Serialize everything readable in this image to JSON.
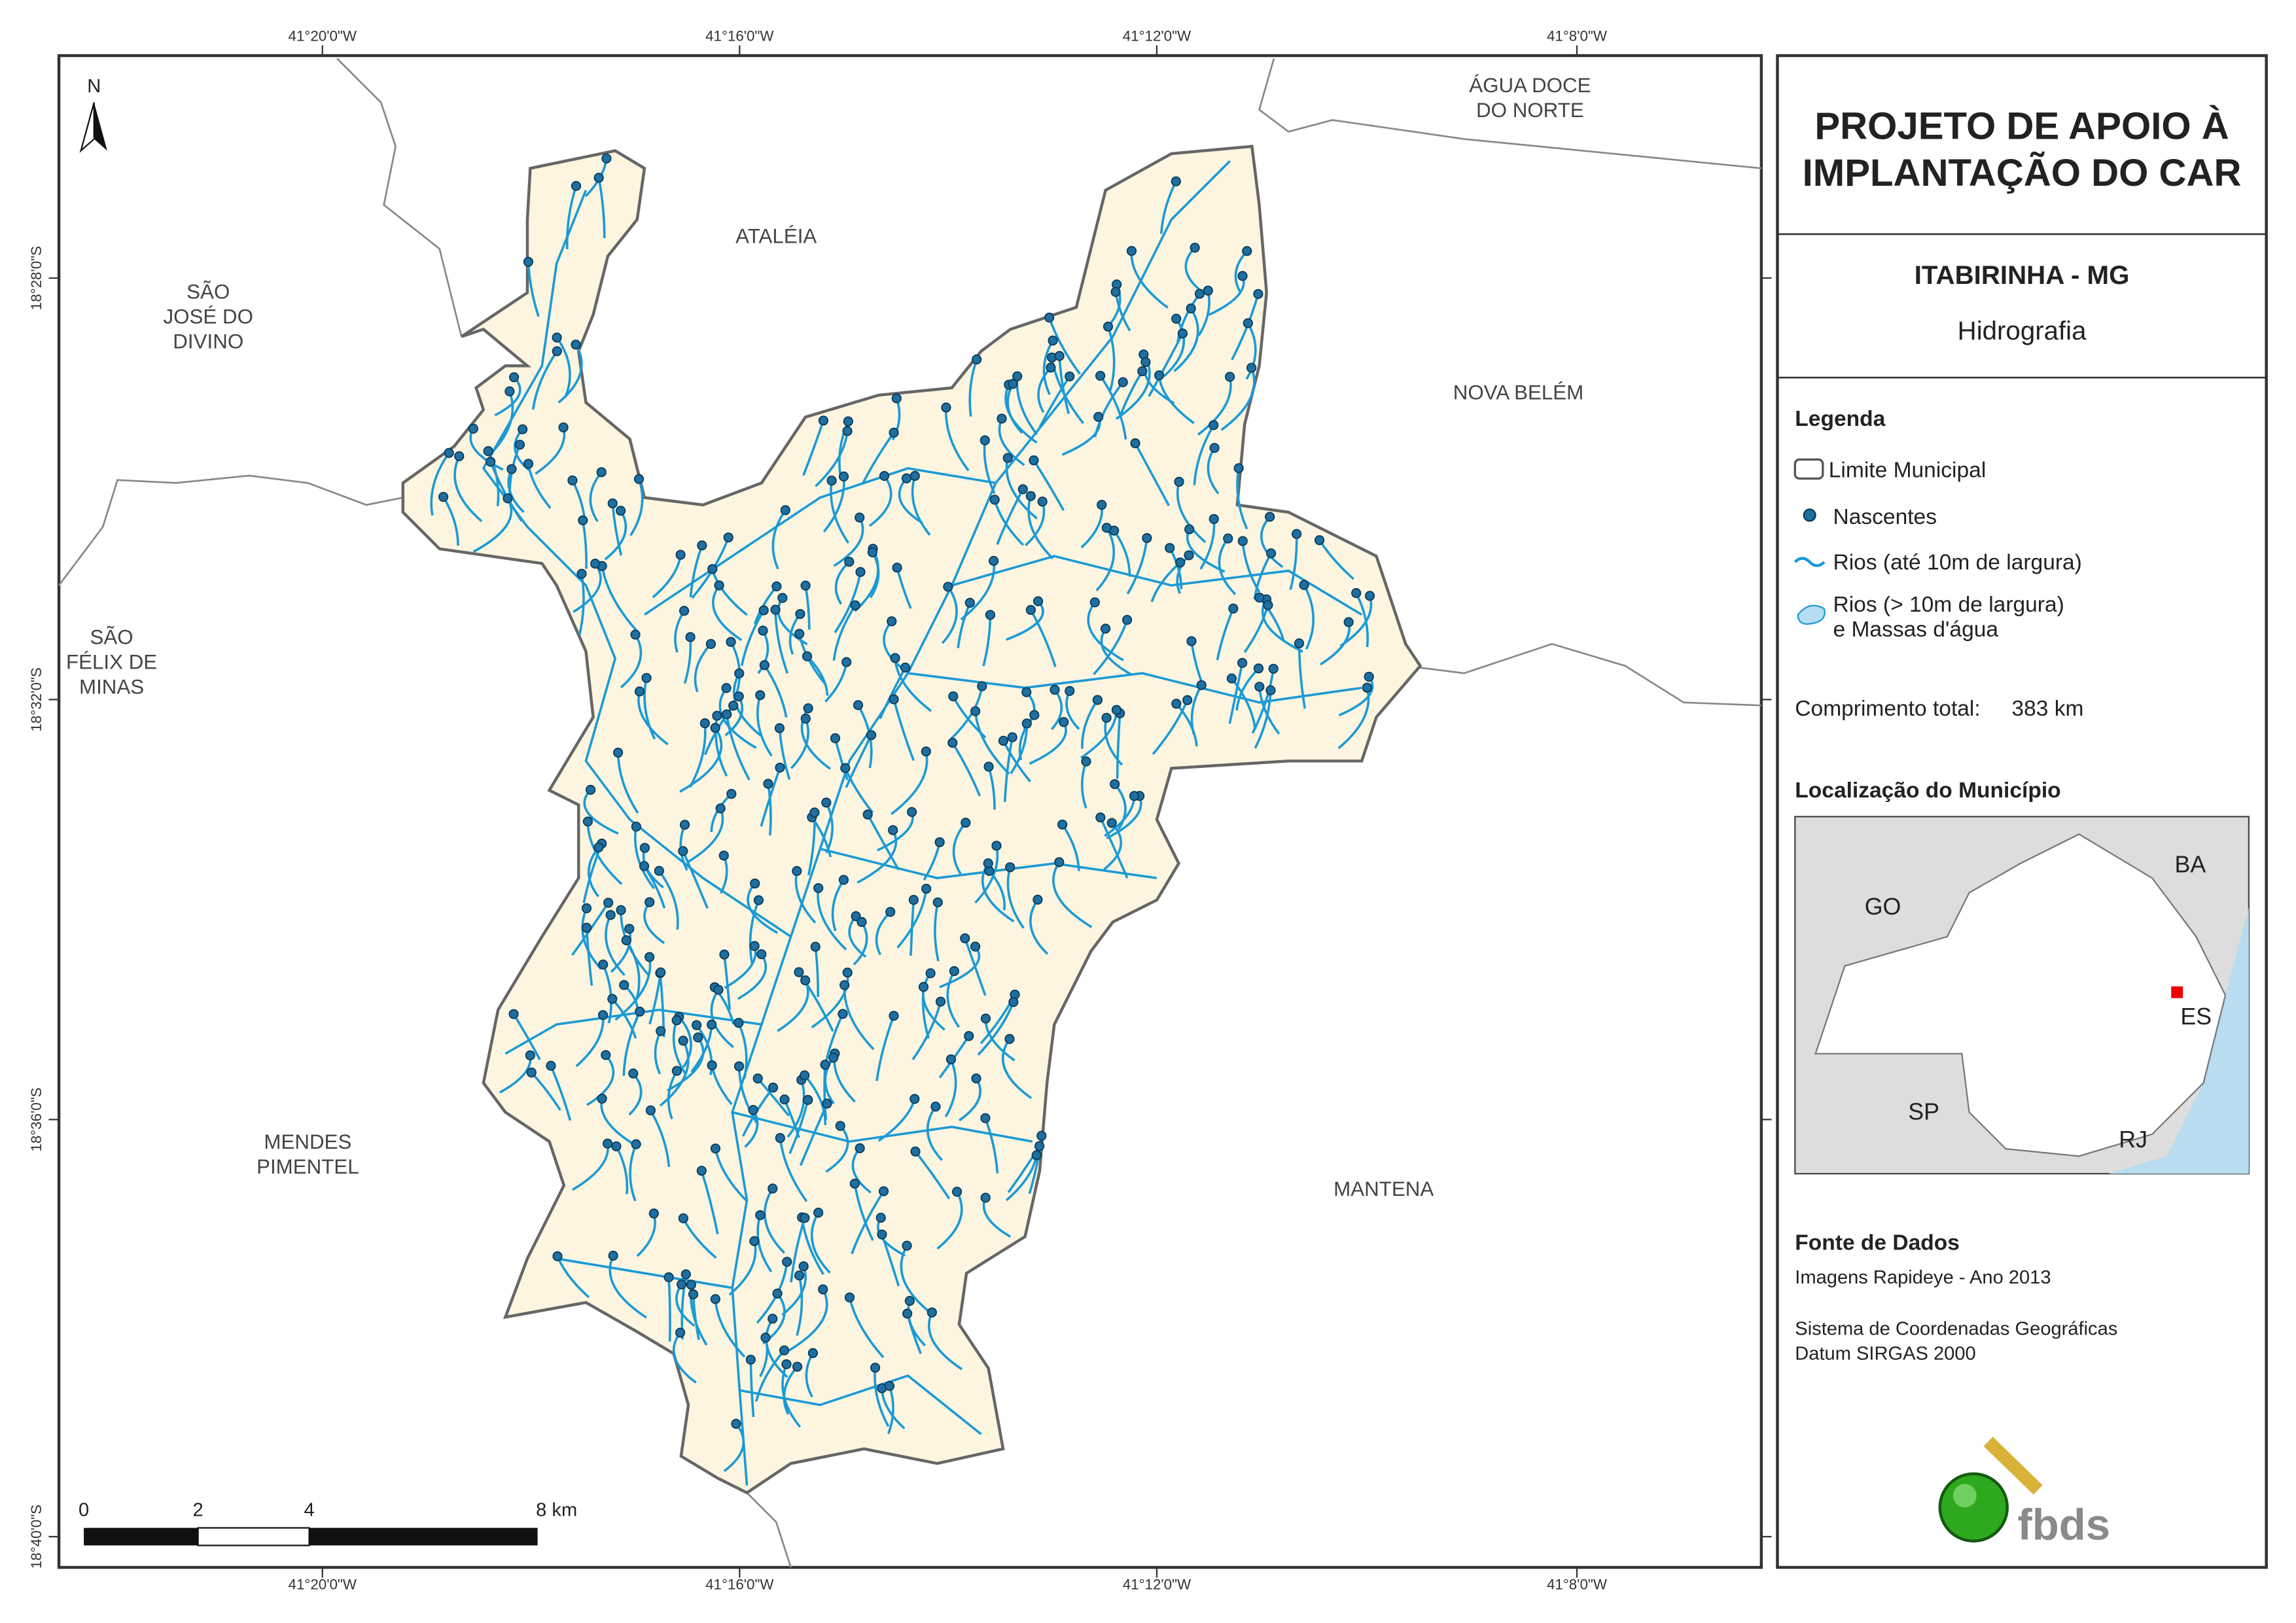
{
  "title": [
    "PROJETO DE APOIO À",
    "IMPLANTAÇÃO DO CAR"
  ],
  "municipality": "ITABIRINHA - MG",
  "theme": "Hidrografia",
  "legend": {
    "title": "Legenda",
    "items": [
      [
        "Limite Municipal"
      ],
      [
        "Nascentes"
      ],
      [
        "Rios (até 10m de largura)"
      ],
      [
        "Rios (> 10m de largura)",
        "e Massas d'água"
      ]
    ]
  },
  "total_length": {
    "label": "Comprimento total:",
    "value": "383 km"
  },
  "location": {
    "title": "Localização do Município",
    "states": [
      "BA",
      "GO",
      "ES",
      "SP",
      "RJ"
    ]
  },
  "sources": {
    "title": "Fonte de Dados",
    "lines": [
      "Imagens Rapideye - Ano 2013",
      "Sistema de Coordenadas Geográficas",
      "Datum SIRGAS 2000"
    ]
  },
  "logo": "fbds",
  "map": {
    "north": "N",
    "longitudes": [
      "41°20'0\"W",
      "41°16'0\"W",
      "41°12'0\"W",
      "41°8'0\"W"
    ],
    "latitudes": [
      "18°28'0\"S",
      "18°32'0\"S",
      "18°36'0\"S",
      "18°40'0\"S"
    ],
    "neighbors": [
      [
        "ÁGUA DOCE",
        "DO NORTE"
      ],
      [
        "ATALÉIA"
      ],
      [
        "SÃO",
        "JOSÉ DO",
        "DIVINO"
      ],
      [
        "NOVA BELÉM"
      ],
      [
        "SÃO",
        "FÉLIX DE",
        "MINAS"
      ],
      [
        "MENDES",
        "PIMENTEL"
      ],
      [
        "MANTENA"
      ]
    ],
    "scale": [
      "0",
      "2",
      "4",
      "8 km"
    ]
  }
}
